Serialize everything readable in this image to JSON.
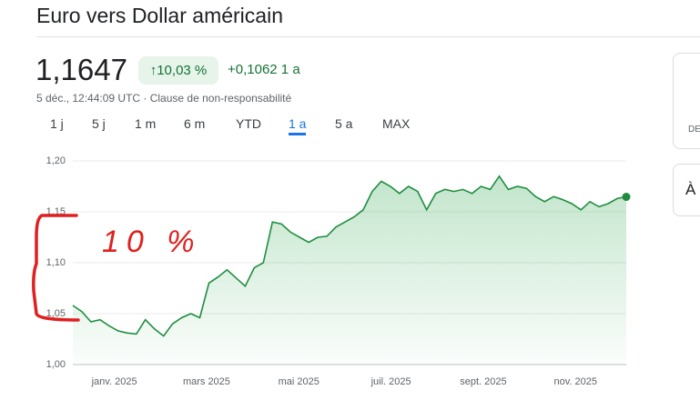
{
  "header": {
    "title": "Euro vers Dollar américain",
    "price": "1,1647",
    "change_pct": "10,03 %",
    "change_abs": "+0,1062 1 a",
    "timestamp": "5 déc., 12:44:09 UTC · Clause de non-responsabilité",
    "tabs": [
      "1 j",
      "5 j",
      "1 m",
      "6 m",
      "YTD",
      "1 a",
      "5 a",
      "MAX"
    ],
    "selected_tab": 5,
    "side": [
      "DE",
      "À"
    ]
  },
  "annotation": "10 %",
  "chart_data": {
    "type": "line",
    "color": "#1e8e3e",
    "values": [
      1.058,
      1.052,
      1.042,
      1.044,
      1.038,
      1.033,
      1.031,
      1.03,
      1.044,
      1.035,
      1.028,
      1.04,
      1.046,
      1.05,
      1.046,
      1.08,
      1.086,
      1.093,
      1.085,
      1.077,
      1.095,
      1.1,
      1.14,
      1.138,
      1.13,
      1.125,
      1.12,
      1.125,
      1.126,
      1.135,
      1.14,
      1.145,
      1.152,
      1.17,
      1.18,
      1.175,
      1.168,
      1.175,
      1.17,
      1.152,
      1.168,
      1.172,
      1.17,
      1.172,
      1.168,
      1.175,
      1.172,
      1.185,
      1.172,
      1.175,
      1.173,
      1.165,
      1.16,
      1.165,
      1.162,
      1.158,
      1.152,
      1.16,
      1.155,
      1.158,
      1.163,
      1.1647
    ],
    "ylim": [
      1.0,
      1.2
    ],
    "yticks": [
      {
        "value": 1.0,
        "label": "1,00"
      },
      {
        "value": 1.05,
        "label": "1,05"
      },
      {
        "value": 1.1,
        "label": "1,10"
      },
      {
        "value": 1.15,
        "label": "1,15"
      },
      {
        "value": 1.2,
        "label": "1,20"
      }
    ],
    "xtick_labels": [
      "janv. 2025",
      "mars 2025",
      "mai 2025",
      "juil. 2025",
      "sept. 2025",
      "nov. 2025"
    ],
    "grid": true
  }
}
